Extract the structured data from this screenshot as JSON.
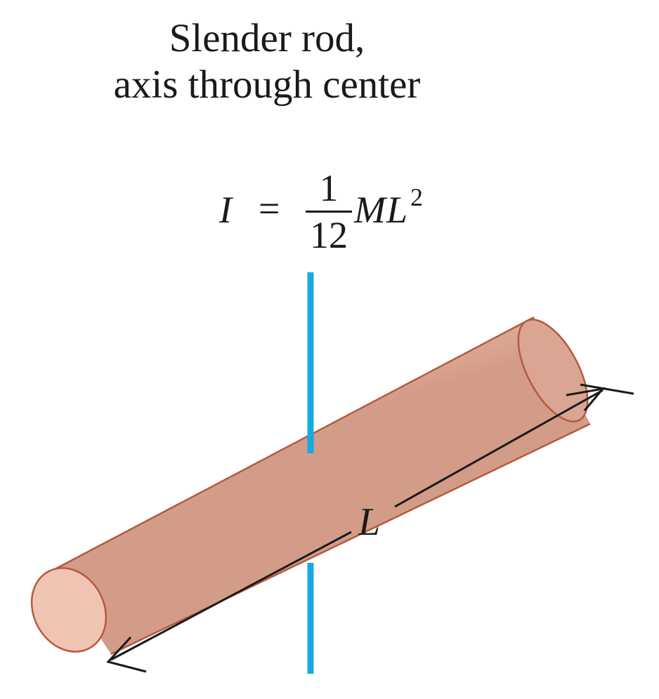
{
  "caption": {
    "line1": "Slender rod,",
    "line2": "axis through center"
  },
  "formula": {
    "lhs": "I",
    "equals": "=",
    "numerator": "1",
    "denominator": "12",
    "mass": "M",
    "length": "L",
    "exponent": "2"
  },
  "dimension": {
    "label": "L"
  },
  "colors": {
    "rod_fill": "#e2b0a0",
    "rod_edge": "#b35a3e",
    "rod_end_fill": "#f0c4b2",
    "axis": "#17a9e1",
    "ink": "#1a1a1a"
  }
}
